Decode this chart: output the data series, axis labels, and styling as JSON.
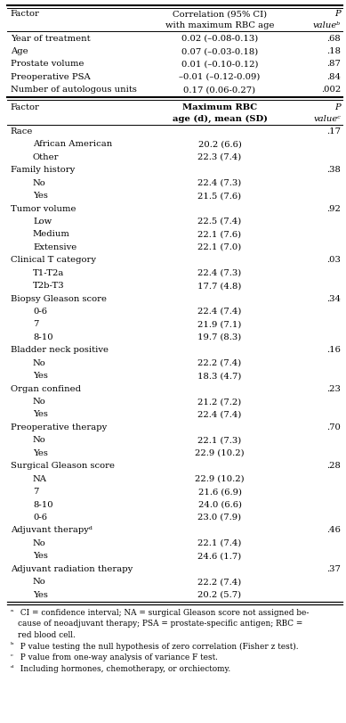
{
  "figsize": [
    3.89,
    8.11
  ],
  "dpi": 100,
  "section1_rows": [
    [
      "Year of treatment",
      "0.02 (–0.08-0.13)",
      ".68"
    ],
    [
      "Age",
      "0.07 (–0.03-0.18)",
      ".18"
    ],
    [
      "Prostate volume",
      "0.01 (–0.10-0.12)",
      ".87"
    ],
    [
      "Preoperative PSA",
      "–0.01 (–0.12-0.09)",
      ".84"
    ],
    [
      "Number of autologous units",
      "0.17 (0.06-0.27)",
      ".002"
    ]
  ],
  "section2_rows": [
    [
      "Race",
      "",
      ".17",
      false
    ],
    [
      "African American",
      "20.2 (6.6)",
      "",
      true
    ],
    [
      "Other",
      "22.3 (7.4)",
      "",
      true
    ],
    [
      "Family history",
      "",
      ".38",
      false
    ],
    [
      "No",
      "22.4 (7.3)",
      "",
      true
    ],
    [
      "Yes",
      "21.5 (7.6)",
      "",
      true
    ],
    [
      "Tumor volume",
      "",
      ".92",
      false
    ],
    [
      "Low",
      "22.5 (7.4)",
      "",
      true
    ],
    [
      "Medium",
      "22.1 (7.6)",
      "",
      true
    ],
    [
      "Extensive",
      "22.1 (7.0)",
      "",
      true
    ],
    [
      "Clinical T category",
      "",
      ".03",
      false
    ],
    [
      "T1-T2a",
      "22.4 (7.3)",
      "",
      true
    ],
    [
      "T2b-T3",
      "17.7 (4.8)",
      "",
      true
    ],
    [
      "Biopsy Gleason score",
      "",
      ".34",
      false
    ],
    [
      "0-6",
      "22.4 (7.4)",
      "",
      true
    ],
    [
      "7",
      "21.9 (7.1)",
      "",
      true
    ],
    [
      "8-10",
      "19.7 (8.3)",
      "",
      true
    ],
    [
      "Bladder neck positive",
      "",
      ".16",
      false
    ],
    [
      "No",
      "22.2 (7.4)",
      "",
      true
    ],
    [
      "Yes",
      "18.3 (4.7)",
      "",
      true
    ],
    [
      "Organ confined",
      "",
      ".23",
      false
    ],
    [
      "No",
      "21.2 (7.2)",
      "",
      true
    ],
    [
      "Yes",
      "22.4 (7.4)",
      "",
      true
    ],
    [
      "Preoperative therapy",
      "",
      ".70",
      false
    ],
    [
      "No",
      "22.1 (7.3)",
      "",
      true
    ],
    [
      "Yes",
      "22.9 (10.2)",
      "",
      true
    ],
    [
      "Surgical Gleason score",
      "",
      ".28",
      false
    ],
    [
      "NA",
      "22.9 (10.2)",
      "",
      true
    ],
    [
      "7",
      "21.6 (6.9)",
      "",
      true
    ],
    [
      "8-10",
      "24.0 (6.6)",
      "",
      true
    ],
    [
      "0-6",
      "23.0 (7.9)",
      "",
      true
    ],
    [
      "Adjuvant therapyᵈ",
      "",
      ".46",
      false
    ],
    [
      "No",
      "22.1 (7.4)",
      "",
      true
    ],
    [
      "Yes",
      "24.6 (1.7)",
      "",
      true
    ],
    [
      "Adjuvant radiation therapy",
      "",
      ".37",
      false
    ],
    [
      "No",
      "22.2 (7.4)",
      "",
      true
    ],
    [
      "Yes",
      "20.2 (5.7)",
      "",
      true
    ]
  ],
  "footnote_lines": [
    [
      "ᵃ",
      " CI = confidence interval; NA = surgical Gleason score not assigned be-"
    ],
    [
      "",
      "cause of neoadjuvant therapy; PSA = prostate-specific antigen; RBC ="
    ],
    [
      "",
      "red blood cell."
    ],
    [
      "ᵇ",
      " P value testing the null hypothesis of zero correlation (Fisher z test)."
    ],
    [
      "ᶜ",
      " P value from one-way analysis of variance F test."
    ],
    [
      "ᵈ",
      " Including hormones, chemotherapy, or orchiectomy."
    ]
  ]
}
